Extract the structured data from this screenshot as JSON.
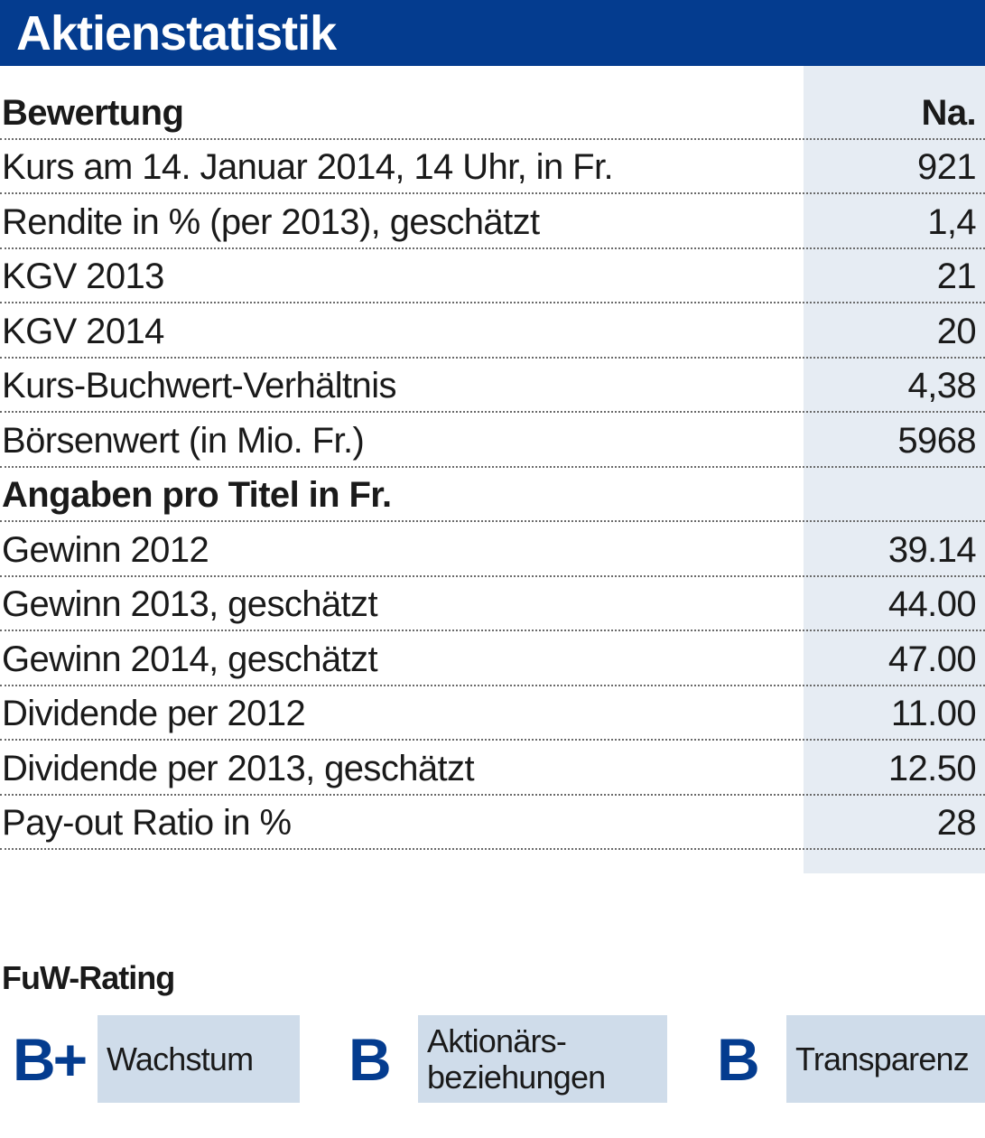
{
  "title": "Aktienstatistik",
  "table": {
    "header": {
      "label": "Bewertung",
      "value": "Na."
    },
    "bewertung_rows": [
      {
        "label": "Kurs am 14. Januar 2014, 14 Uhr, in Fr.",
        "value": "921"
      },
      {
        "label": "Rendite in % (per 2013), geschätzt",
        "value": "1,4"
      },
      {
        "label": "KGV 2013",
        "value": "21"
      },
      {
        "label": "KGV 2014",
        "value": "20"
      },
      {
        "label": "Kurs-Buchwert-Verhältnis",
        "value": "4,38"
      },
      {
        "label": "Börsenwert (in Mio. Fr.)",
        "value": "5968"
      }
    ],
    "section2_header": "Angaben pro Titel in Fr.",
    "titel_rows": [
      {
        "label": "Gewinn 2012",
        "value": "39.14"
      },
      {
        "label": "Gewinn 2013, geschätzt",
        "value": "44.00"
      },
      {
        "label": "Gewinn 2014, geschätzt",
        "value": "47.00"
      },
      {
        "label": "Dividende per 2012",
        "value": "11.00"
      },
      {
        "label": "Dividende per 2013, geschätzt",
        "value": "12.50"
      },
      {
        "label": "Pay-out Ratio in %",
        "value": "28"
      }
    ]
  },
  "rating": {
    "heading": "FuW-Rating",
    "items": [
      {
        "grade": "B+",
        "label": "Wachstum"
      },
      {
        "grade": "B",
        "label": "Aktionärs-\nbeziehungen"
      },
      {
        "grade": "B",
        "label": "Transparenz"
      }
    ]
  },
  "colors": {
    "brand_blue": "#043c8f",
    "value_column_bg": "#e6ecf3",
    "rating_box_bg": "#cfdcea"
  }
}
